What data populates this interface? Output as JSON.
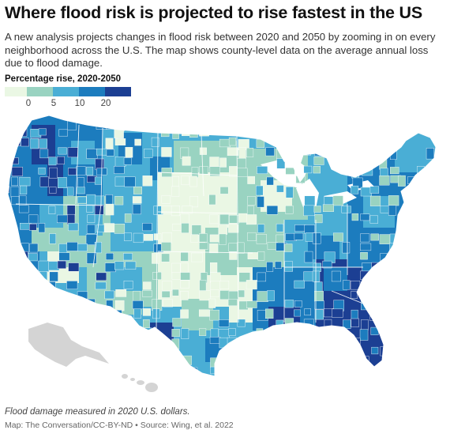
{
  "header": {
    "title": "Where flood risk is projected to rise fastest in the US",
    "subtitle": "A new analysis projects changes in flood risk between 2020 and 2050 by zooming in on every neighborhood across the U.S. The map shows county-level data on the average annual loss due to flood damage."
  },
  "legend": {
    "title": "Percentage rise, 2020-2050",
    "colors": [
      "#eaf7e4",
      "#99d3c1",
      "#4aaed5",
      "#1c7cbe",
      "#1c3f93"
    ],
    "ticks": [
      "0",
      "5",
      "10",
      "20"
    ]
  },
  "map": {
    "regions": [
      {
        "name": "Florida",
        "bin": 4
      },
      {
        "name": "Southeast Atlantic coast",
        "bin": 4
      },
      {
        "name": "Louisiana Gulf coast",
        "bin": 4
      },
      {
        "name": "Texas Gulf coast",
        "bin": 3
      },
      {
        "name": "Pacific Northwest",
        "bin": 3
      },
      {
        "name": "Northern Rockies",
        "bin": 3
      },
      {
        "name": "California coast",
        "bin": 3
      },
      {
        "name": "Northeast",
        "bin": 3
      },
      {
        "name": "Appalachia",
        "bin": 2
      },
      {
        "name": "Great Plains",
        "bin": 0
      },
      {
        "name": "Desert Southwest",
        "bin": 1
      },
      {
        "name": "Upper Midwest",
        "bin": 1
      },
      {
        "name": "Alaska",
        "bin": null
      },
      {
        "name": "Hawaii",
        "bin": null
      }
    ],
    "nodata_color": "#d4d4d4"
  },
  "footer": {
    "note": "Flood damage measured in 2020 U.S. dollars.",
    "credit": "Map: The Conversation/CC-BY-ND • Source: Wing, et al. 2022"
  }
}
